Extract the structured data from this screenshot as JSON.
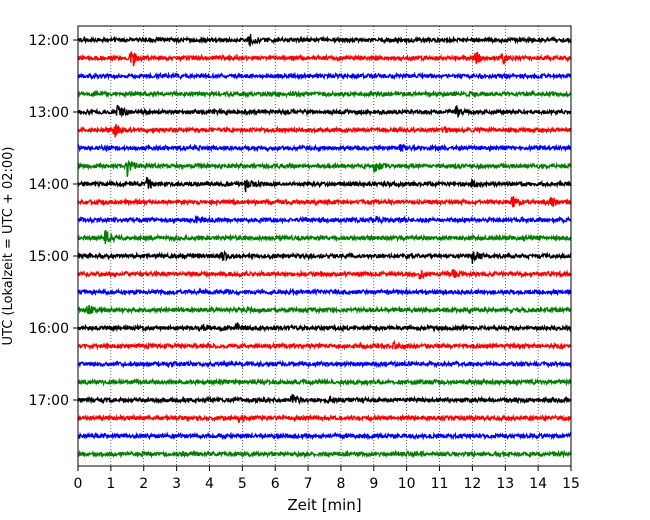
{
  "chart_data": {
    "type": "line",
    "subtype": "helicorder",
    "xlabel": "Zeit  [min]",
    "ylabel": "UTC (Lokalzeit = UTC + 02:00)",
    "xlim": [
      0,
      15
    ],
    "x_ticks": [
      "0",
      "1",
      "2",
      "3",
      "4",
      "5",
      "6",
      "7",
      "8",
      "9",
      "10",
      "11",
      "12",
      "13",
      "14",
      "15"
    ],
    "y_tick_labels": [
      "12:00",
      "13:00",
      "14:00",
      "15:00",
      "16:00",
      "17:00"
    ],
    "y_ticks_hours": [
      12,
      13,
      14,
      15,
      16,
      17
    ],
    "trace_interval_minutes": 15,
    "traces_start_hour": 12,
    "trace_count": 24,
    "colors": [
      "#000000",
      "#ff0000",
      "#0000ff",
      "#008000"
    ],
    "grid": "vertical dotted at each minute",
    "events": [
      {
        "trace": 0,
        "minute": 5.2,
        "amp": 1.6
      },
      {
        "trace": 1,
        "minute": 1.6,
        "amp": 3.5
      },
      {
        "trace": 1,
        "minute": 12.1,
        "amp": 1.4
      },
      {
        "trace": 1,
        "minute": 12.9,
        "amp": 1.2
      },
      {
        "trace": 4,
        "minute": 1.2,
        "amp": 1.6
      },
      {
        "trace": 4,
        "minute": 11.5,
        "amp": 1.4
      },
      {
        "trace": 5,
        "minute": 1.1,
        "amp": 2.0
      },
      {
        "trace": 5,
        "minute": 11.1,
        "amp": 1.0
      },
      {
        "trace": 6,
        "minute": 9.8,
        "amp": 1.0
      },
      {
        "trace": 7,
        "minute": 1.5,
        "amp": 2.4
      },
      {
        "trace": 7,
        "minute": 9.0,
        "amp": 1.6
      },
      {
        "trace": 8,
        "minute": 2.1,
        "amp": 1.6
      },
      {
        "trace": 8,
        "minute": 5.1,
        "amp": 1.6
      },
      {
        "trace": 8,
        "minute": 12.0,
        "amp": 1.2
      },
      {
        "trace": 9,
        "minute": 13.2,
        "amp": 1.5
      },
      {
        "trace": 9,
        "minute": 14.4,
        "amp": 1.2
      },
      {
        "trace": 10,
        "minute": 3.6,
        "amp": 1.0
      },
      {
        "trace": 10,
        "minute": 9.0,
        "amp": 1.0
      },
      {
        "trace": 11,
        "minute": 0.8,
        "amp": 2.4
      },
      {
        "trace": 12,
        "minute": 4.4,
        "amp": 1.0
      },
      {
        "trace": 12,
        "minute": 12.0,
        "amp": 1.6
      },
      {
        "trace": 13,
        "minute": 10.4,
        "amp": 1.1
      },
      {
        "trace": 13,
        "minute": 11.4,
        "amp": 1.0
      },
      {
        "trace": 15,
        "minute": 0.3,
        "amp": 1.3
      },
      {
        "trace": 16,
        "minute": 3.8,
        "amp": 1.2
      },
      {
        "trace": 16,
        "minute": 4.8,
        "amp": 1.3
      },
      {
        "trace": 17,
        "minute": 9.6,
        "amp": 1.0
      },
      {
        "trace": 20,
        "minute": 6.5,
        "amp": 1.4
      },
      {
        "trace": 20,
        "minute": 7.6,
        "amp": 1.0
      },
      {
        "trace": 21,
        "minute": 4.9,
        "amp": 1.0
      }
    ]
  }
}
